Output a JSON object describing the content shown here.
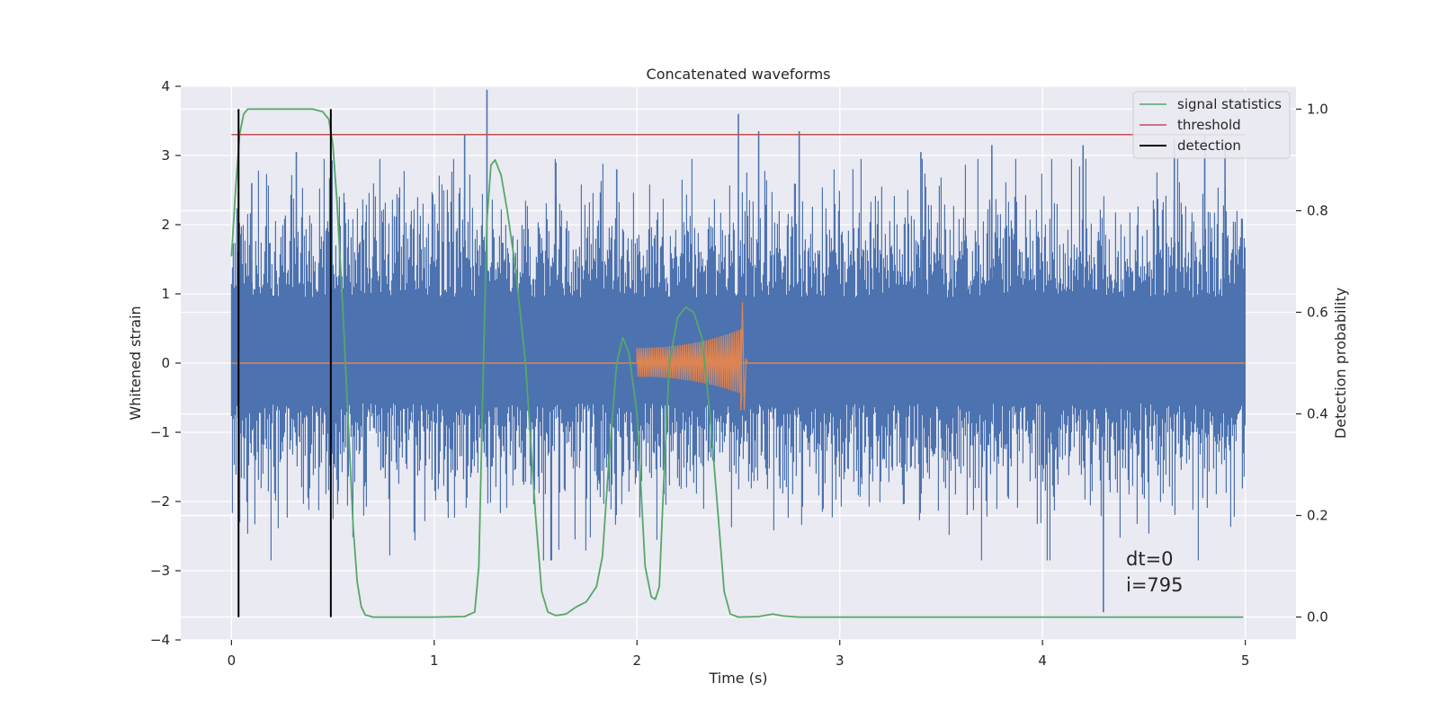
{
  "chart_data": {
    "type": "line",
    "title": "Concatenated waveforms",
    "xlabel": "Time (s)",
    "ylabel": "Whitened strain",
    "y2label": "Detection probability",
    "xlim": [
      -0.25,
      5.25
    ],
    "ylim": [
      -4.0,
      4.0
    ],
    "y2lim": [
      -0.045,
      1.045
    ],
    "xticks": [
      0,
      1,
      2,
      3,
      4,
      5
    ],
    "xtick_labels": [
      "0",
      "1",
      "2",
      "3",
      "4",
      "5"
    ],
    "yticks": [
      -4,
      -3,
      -2,
      -1,
      0,
      1,
      2,
      3,
      4
    ],
    "ytick_labels": [
      "−4",
      "−3",
      "−2",
      "−1",
      "0",
      "1",
      "2",
      "3",
      "4"
    ],
    "y2ticks": [
      0.0,
      0.2,
      0.4,
      0.6,
      0.8,
      1.0
    ],
    "y2tick_labels": [
      "0.0",
      "0.2",
      "0.4",
      "0.6",
      "0.8",
      "1.0"
    ],
    "grid": true,
    "legend_position": "top-right",
    "colors": {
      "noise": "#4c72b0",
      "signal": "#dd8452",
      "statistics": "#55a868",
      "threshold": "#c44e52",
      "detection": "#000000",
      "background": "#eaeaf2",
      "grid": "#ffffff"
    },
    "series": [
      {
        "key": "signal_statistics",
        "name": "signal statistics",
        "axis": "right",
        "x": [
          0.0,
          0.02,
          0.04,
          0.06,
          0.08,
          0.12,
          0.2,
          0.3,
          0.4,
          0.45,
          0.48,
          0.5,
          0.52,
          0.55,
          0.58,
          0.6,
          0.62,
          0.64,
          0.66,
          0.7,
          0.8,
          1.0,
          1.15,
          1.2,
          1.22,
          1.24,
          1.26,
          1.28,
          1.3,
          1.33,
          1.36,
          1.4,
          1.45,
          1.5,
          1.53,
          1.56,
          1.6,
          1.65,
          1.7,
          1.75,
          1.8,
          1.83,
          1.86,
          1.9,
          1.93,
          1.96,
          2.0,
          2.04,
          2.07,
          2.09,
          2.11,
          2.13,
          2.16,
          2.2,
          2.24,
          2.28,
          2.32,
          2.36,
          2.4,
          2.43,
          2.46,
          2.5,
          2.6,
          2.67,
          2.72,
          2.8,
          3.0,
          4.0,
          4.99
        ],
        "y": [
          0.71,
          0.84,
          0.95,
          0.99,
          1.0,
          1.0,
          1.0,
          1.0,
          1.0,
          0.995,
          0.98,
          0.93,
          0.82,
          0.6,
          0.35,
          0.18,
          0.07,
          0.02,
          0.004,
          0.0,
          0.0,
          0.0,
          0.001,
          0.01,
          0.1,
          0.45,
          0.78,
          0.89,
          0.9,
          0.87,
          0.8,
          0.69,
          0.5,
          0.2,
          0.05,
          0.01,
          0.003,
          0.006,
          0.02,
          0.03,
          0.06,
          0.12,
          0.3,
          0.5,
          0.55,
          0.52,
          0.4,
          0.1,
          0.04,
          0.035,
          0.06,
          0.25,
          0.5,
          0.59,
          0.61,
          0.6,
          0.55,
          0.4,
          0.2,
          0.05,
          0.006,
          0.0,
          0.001,
          0.006,
          0.002,
          0.0,
          0.0,
          0.0,
          0.0
        ]
      },
      {
        "key": "threshold",
        "name": "threshold",
        "axis": "right",
        "x": [
          0.0,
          5.0
        ],
        "y": [
          0.95,
          0.95
        ]
      },
      {
        "key": "detection",
        "name": "detection",
        "axis": "right",
        "x": [
          0.035,
          0.49
        ],
        "y_range": [
          0.0,
          1.0
        ]
      }
    ],
    "noise": {
      "x_range": [
        0.0,
        5.0
      ],
      "typical_amplitude": [
        -0.58,
        0.95
      ],
      "spikes": [
        [
          0.04,
          -2.3
        ],
        [
          0.1,
          2.6
        ],
        [
          0.32,
          3.05
        ],
        [
          0.48,
          1.9
        ],
        [
          1.15,
          3.3
        ],
        [
          1.26,
          3.95
        ],
        [
          1.6,
          2.9
        ],
        [
          1.9,
          2.8
        ],
        [
          2.5,
          3.6
        ],
        [
          2.6,
          3.35
        ],
        [
          2.8,
          3.35
        ],
        [
          3.4,
          3.05
        ],
        [
          3.75,
          3.15
        ],
        [
          4.2,
          3.15
        ],
        [
          4.3,
          -3.6
        ],
        [
          4.65,
          3.25
        ],
        [
          4.8,
          3.3
        ],
        [
          4.9,
          3.2
        ]
      ]
    },
    "injected_signal": {
      "x_start": 2.0,
      "x_peak": 2.52,
      "peak_amplitude": 0.88,
      "trough_amplitude": -0.68,
      "start_amplitude": 0.22,
      "baseline": 0.0
    },
    "legend": [
      "signal statistics",
      "threshold",
      "detection"
    ],
    "annotations": [
      "dt=0",
      "i=795"
    ]
  }
}
